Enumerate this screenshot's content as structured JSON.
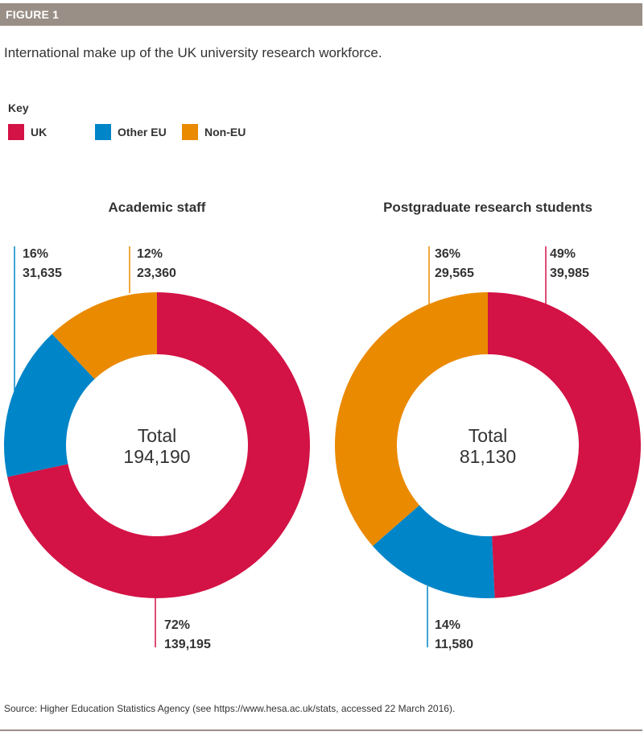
{
  "figure": {
    "label": "FIGURE 1",
    "subtitle": "International make up of the UK university research workforce."
  },
  "legend": {
    "title": "Key",
    "items": [
      {
        "label": "UK",
        "color": "#d31245"
      },
      {
        "label": "Other EU",
        "color": "#0085c8"
      },
      {
        "label": "Non-EU",
        "color": "#ea8a00"
      }
    ]
  },
  "chart_data": [
    {
      "type": "pie",
      "title": "Academic staff",
      "center_label": "Total",
      "total": "194,190",
      "slices": [
        {
          "category": "UK",
          "percent": 72,
          "percent_label": "72%",
          "value": 139195,
          "value_label": "139,195",
          "color": "#d31245"
        },
        {
          "category": "Other EU",
          "percent": 16,
          "percent_label": "16%",
          "value": 31635,
          "value_label": "31,635",
          "color": "#0085c8"
        },
        {
          "category": "Non-EU",
          "percent": 12,
          "percent_label": "12%",
          "value": 23360,
          "value_label": "23,360",
          "color": "#ea8a00"
        }
      ]
    },
    {
      "type": "pie",
      "title": "Postgraduate research students",
      "center_label": "Total",
      "total": "81,130",
      "slices": [
        {
          "category": "UK",
          "percent": 49,
          "percent_label": "49%",
          "value": 39985,
          "value_label": "39,985",
          "color": "#d31245"
        },
        {
          "category": "Other EU",
          "percent": 14,
          "percent_label": "14%",
          "value": 11580,
          "value_label": "11,580",
          "color": "#0085c8"
        },
        {
          "category": "Non-EU",
          "percent": 36,
          "percent_label": "36%",
          "value": 29565,
          "value_label": "29,565",
          "color": "#ea8a00"
        }
      ]
    }
  ],
  "source": "Source: Higher Education Statistics Agency (see https://www.hesa.ac.uk/stats, accessed 22 March 2016)."
}
